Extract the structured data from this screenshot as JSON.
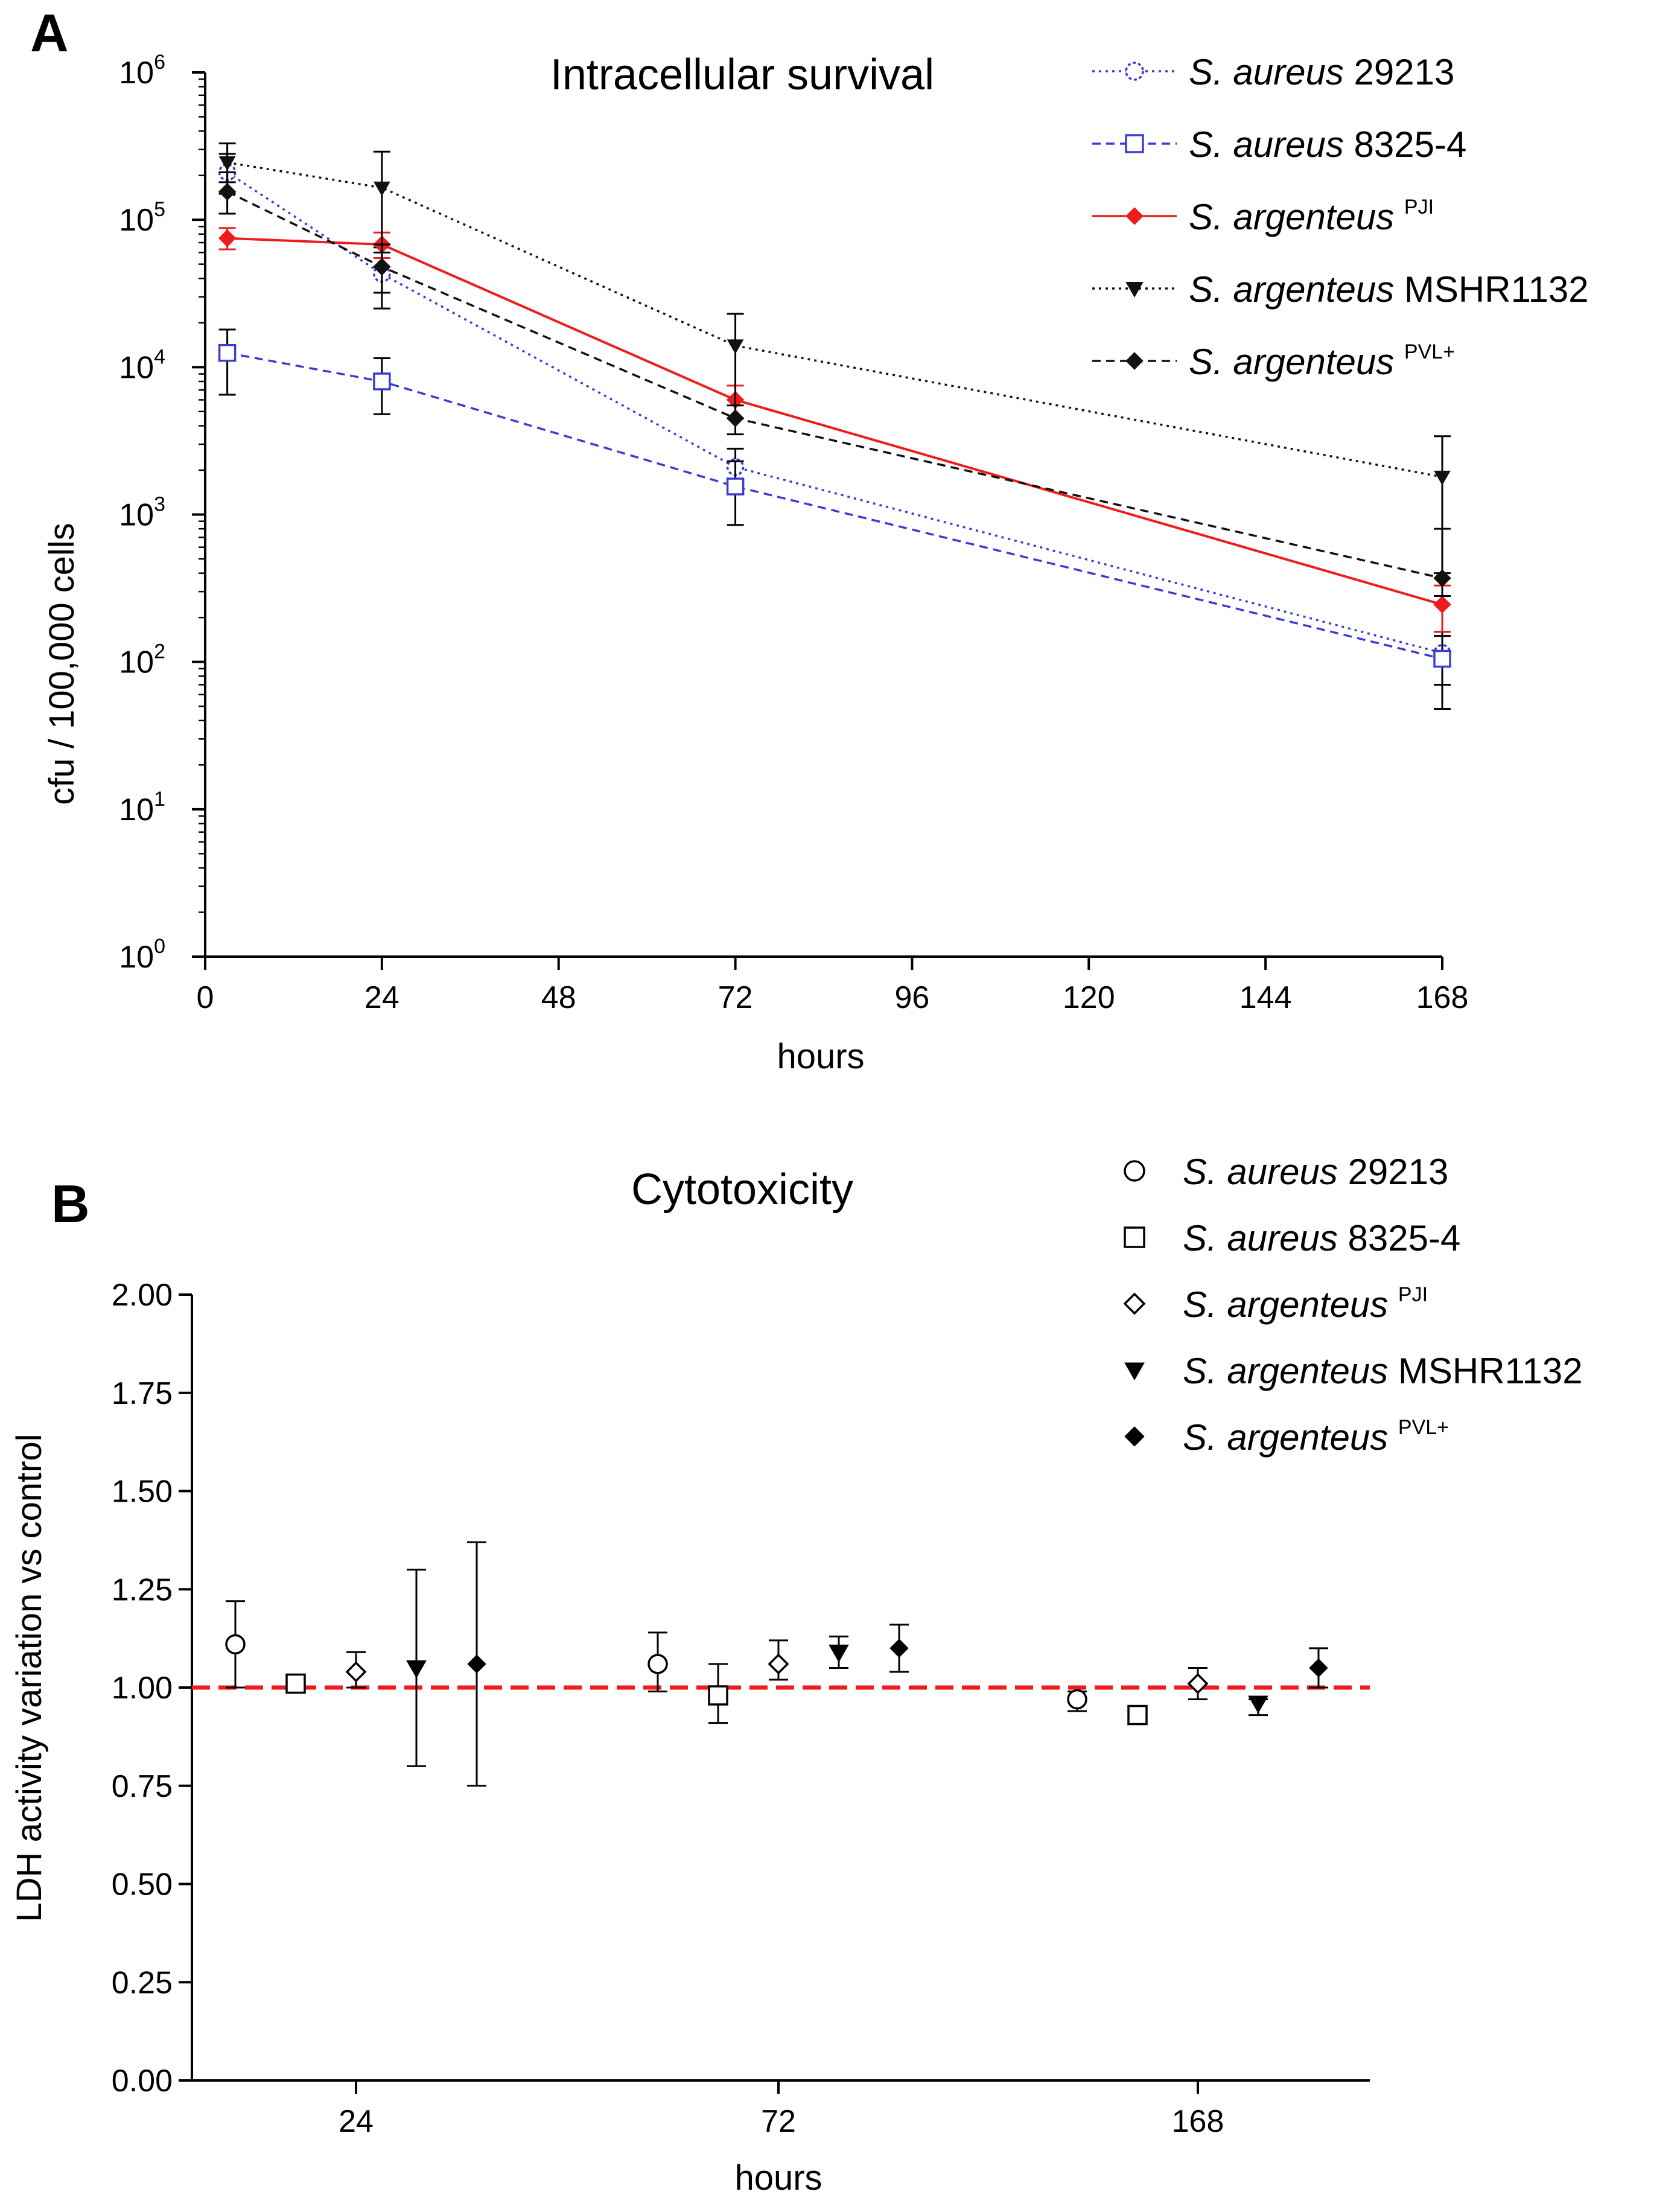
{
  "chart_data": [
    {
      "id": "A",
      "panel_label": "A",
      "type": "line",
      "title": "Intracellular survival",
      "xlabel": "hours",
      "ylabel": "cfu / 100,000 cells",
      "xlim": [
        0,
        168
      ],
      "xticks": [
        0,
        24,
        48,
        72,
        96,
        120,
        144,
        168
      ],
      "yscale": "log",
      "ylim": [
        1,
        1000000
      ],
      "yticks": [
        {
          "value": 1,
          "base": "10",
          "exp": "0"
        },
        {
          "value": 10,
          "base": "10",
          "exp": "1"
        },
        {
          "value": 100,
          "base": "10",
          "exp": "2"
        },
        {
          "value": 1000,
          "base": "10",
          "exp": "3"
        },
        {
          "value": 10000,
          "base": "10",
          "exp": "4"
        },
        {
          "value": 100000,
          "base": "10",
          "exp": "5"
        },
        {
          "value": 1000000,
          "base": "10",
          "exp": "6"
        }
      ],
      "legend_position": "top-right",
      "series": [
        {
          "name_italic": "S. aureus",
          "name_rest": " 29213",
          "sup": "",
          "color": "#3b3bd6",
          "marker": "circle-dot",
          "dash": "dotted",
          "x": [
            3,
            24,
            72,
            168
          ],
          "values": [
            210000,
            43000,
            2100,
            115
          ],
          "err_low": [
            150000,
            25000,
            1400,
            70
          ],
          "err_high": [
            280000,
            65000,
            2800,
            150
          ]
        },
        {
          "name_italic": "S. aureus",
          "name_rest": " 8325-4",
          "sup": "",
          "color": "#3b3bd6",
          "marker": "square-open",
          "dash": "dashed",
          "x": [
            3,
            24,
            72,
            168
          ],
          "values": [
            12500,
            8000,
            1550,
            105
          ],
          "err_low": [
            6500,
            4800,
            850,
            48
          ],
          "err_high": [
            18000,
            11500,
            2300,
            160
          ]
        },
        {
          "name_italic": "S. argenteus",
          "name_rest": "",
          "sup": "PJI",
          "color": "#ee1c1c",
          "marker": "diamond-filled",
          "dash": "solid",
          "x": [
            3,
            24,
            72,
            168
          ],
          "values": [
            75000,
            68000,
            6000,
            245
          ],
          "err_low": [
            63000,
            55000,
            4500,
            160
          ],
          "err_high": [
            88000,
            82000,
            7500,
            330
          ]
        },
        {
          "name_italic": "S. argenteus",
          "name_rest": " MSHR1132",
          "sup": "",
          "color": "#111111",
          "marker": "triangle-down",
          "dash": "dotted",
          "x": [
            3,
            24,
            72,
            168
          ],
          "values": [
            245000,
            165000,
            14000,
            1800
          ],
          "err_low": [
            180000,
            60000,
            4500,
            400
          ],
          "err_high": [
            330000,
            290000,
            23000,
            3400
          ]
        },
        {
          "name_italic": "S. argenteus",
          "name_rest": "",
          "sup": "PVL+",
          "color": "#111111",
          "marker": "diamond-filled",
          "dash": "dashed",
          "x": [
            3,
            24,
            72,
            168
          ],
          "values": [
            155000,
            48000,
            4500,
            370
          ],
          "err_low": [
            110000,
            32000,
            3500,
            280
          ],
          "err_high": [
            210000,
            68000,
            5500,
            800
          ]
        }
      ]
    },
    {
      "id": "B",
      "panel_label": "B",
      "type": "scatter",
      "title": "Cytotoxicity",
      "xlabel": "hours",
      "ylabel": "LDH activity variation vs control",
      "categories": [
        "24",
        "72",
        "168"
      ],
      "ylim": [
        0,
        2
      ],
      "yticks": [
        "0.00",
        "0.25",
        "0.50",
        "0.75",
        "1.00",
        "1.25",
        "1.50",
        "1.75",
        "2.00"
      ],
      "reference_line": {
        "value": 1.0,
        "color": "#ee1c1c",
        "style": "dashed"
      },
      "legend_position": "top-right",
      "series": [
        {
          "name_italic": "S. aureus",
          "name_rest": " 29213",
          "sup": "",
          "marker": "circle-open",
          "values": [
            1.11,
            1.06,
            0.97
          ],
          "err_low": [
            1.0,
            0.99,
            0.94
          ],
          "err_high": [
            1.22,
            1.14,
            0.99
          ]
        },
        {
          "name_italic": "S. aureus",
          "name_rest": " 8325-4",
          "sup": "",
          "marker": "square-open",
          "values": [
            1.01,
            0.98,
            0.93
          ],
          "err_low": [
            1.0,
            0.91,
            0.92
          ],
          "err_high": [
            1.03,
            1.06,
            0.94
          ]
        },
        {
          "name_italic": "S. argenteus",
          "name_rest": "",
          "sup": "PJI",
          "marker": "diamond-open",
          "values": [
            1.04,
            1.06,
            1.01
          ],
          "err_low": [
            1.0,
            1.02,
            0.97
          ],
          "err_high": [
            1.09,
            1.12,
            1.05
          ]
        },
        {
          "name_italic": "S. argenteus",
          "name_rest": " MSHR1132",
          "sup": "",
          "marker": "triangle-down",
          "values": [
            1.05,
            1.09,
            0.96
          ],
          "err_low": [
            0.8,
            1.05,
            0.93
          ],
          "err_high": [
            1.3,
            1.13,
            0.97
          ]
        },
        {
          "name_italic": "S. argenteus",
          "name_rest": "",
          "sup": "PVL+",
          "marker": "diamond-filled",
          "values": [
            1.06,
            1.1,
            1.05
          ],
          "err_low": [
            0.75,
            1.04,
            1.0
          ],
          "err_high": [
            1.37,
            1.16,
            1.1
          ]
        }
      ]
    }
  ]
}
